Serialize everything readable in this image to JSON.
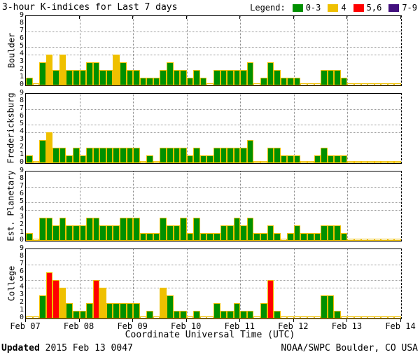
{
  "title": "3-hour K-indices for Last 7 days",
  "legend": {
    "label": "Legend:",
    "items": [
      {
        "label": "0-3",
        "color": "#009000"
      },
      {
        "label": "4",
        "color": "#EFC000"
      },
      {
        "label": "5,6",
        "color": "#FF0000"
      },
      {
        "label": "7-9",
        "color": "#42107E"
      }
    ]
  },
  "chart_data": {
    "type": "bar",
    "interval_hours": 3,
    "bars_per_day": 8,
    "ylim": [
      0,
      9
    ],
    "y_ticks": [
      "0",
      "1",
      "2",
      "3",
      "4",
      "5",
      "6",
      "7",
      "8",
      "9"
    ],
    "dotted_y_gridlines": [
      4,
      5,
      7
    ],
    "x_tick_labels": [
      "Feb 07",
      "Feb 08",
      "Feb 09",
      "Feb 10",
      "Feb 11",
      "Feb 12",
      "Feb 13",
      "Feb 14"
    ],
    "xlabel": "Coordinate Universal Time (UTC)",
    "grid": "dotted day boundaries and K=4,5,7 levels",
    "legend_position": "top-right",
    "color_rule": {
      "green_max": 3,
      "yellow": 4,
      "red_min": 5,
      "red_max": 6,
      "purple_min": 7
    },
    "colors": {
      "green": "#009000",
      "yellow": "#EFC000",
      "red": "#FF0000",
      "purple": "#42107E",
      "bar_outline": "#EFC000"
    },
    "panels": [
      {
        "station": "Boulder",
        "values": [
          1,
          0,
          3,
          4,
          2,
          4,
          2,
          2,
          2,
          3,
          3,
          2,
          2,
          4,
          3,
          2,
          2,
          1,
          1,
          1,
          2,
          3,
          2,
          2,
          1,
          2,
          1,
          0,
          2,
          2,
          2,
          2,
          2,
          3,
          0,
          1,
          3,
          2,
          1,
          1,
          1,
          0,
          0,
          0,
          2,
          2,
          2,
          1,
          0,
          0,
          0,
          0,
          0,
          0,
          0,
          0
        ]
      },
      {
        "station": "Fredericksburg",
        "values": [
          1,
          0,
          3,
          4,
          2,
          2,
          1,
          2,
          1,
          2,
          2,
          2,
          2,
          2,
          2,
          2,
          2,
          0,
          1,
          0,
          2,
          2,
          2,
          2,
          1,
          2,
          1,
          1,
          2,
          2,
          2,
          2,
          2,
          3,
          0,
          0,
          2,
          2,
          1,
          1,
          1,
          0,
          0,
          1,
          2,
          1,
          1,
          1,
          0,
          0,
          0,
          0,
          0,
          0,
          0,
          0
        ]
      },
      {
        "station": "Est. Planetary",
        "values": [
          1,
          0,
          3,
          3,
          2,
          3,
          2,
          2,
          2,
          3,
          3,
          2,
          2,
          2,
          3,
          3,
          3,
          1,
          1,
          1,
          3,
          2,
          2,
          3,
          1,
          3,
          1,
          1,
          1,
          2,
          2,
          3,
          2,
          3,
          1,
          1,
          2,
          1,
          0,
          1,
          2,
          1,
          1,
          1,
          2,
          2,
          2,
          1,
          0,
          0,
          0,
          0,
          0,
          0,
          0,
          0
        ]
      },
      {
        "station": "College",
        "values": [
          0,
          0,
          3,
          6,
          5,
          4,
          2,
          1,
          1,
          2,
          5,
          4,
          2,
          2,
          2,
          2,
          2,
          0,
          1,
          0,
          4,
          3,
          1,
          1,
          0,
          1,
          0,
          0,
          2,
          1,
          1,
          2,
          1,
          1,
          0,
          2,
          5,
          1,
          0,
          0,
          0,
          0,
          0,
          0,
          3,
          3,
          1,
          0,
          0,
          0,
          0,
          0,
          0,
          0,
          0,
          0
        ]
      }
    ]
  },
  "footer": {
    "updated_label": "Updated",
    "updated_value": " 2015 Feb 13 0047",
    "credit": "NOAA/SWPC Boulder, CO USA"
  }
}
